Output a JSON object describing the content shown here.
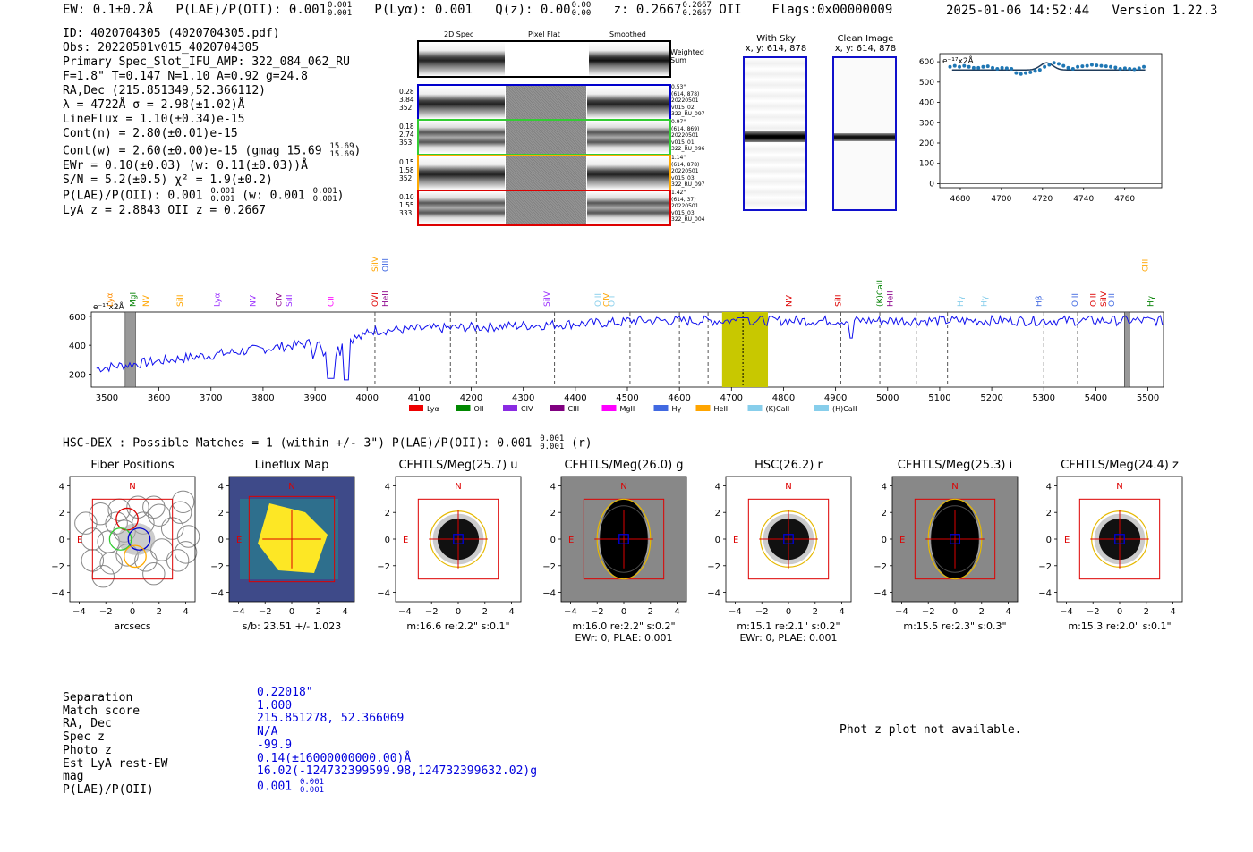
{
  "header": {
    "ew": "EW: 0.1±0.2Å",
    "plae_label": "P(LAE)/P(OII): 0.001",
    "plae_hi": "0.001",
    "plae_lo": "0.001",
    "plya": "P(Lyα): 0.001",
    "qz_label": "Q(z): 0.00",
    "qz_hi": "0.00",
    "qz_lo": "0.00",
    "z_label": "z: 0.2667",
    "z_hi": "0.2667",
    "z_lo": "0.2667",
    "z_line": "OII",
    "flags": "Flags:0x00000009",
    "timestamp": "2025-01-06 14:52:44",
    "version": "Version 1.22.3"
  },
  "info": {
    "lines": [
      "ID: 4020704305 (4020704305.pdf)",
      "Obs: 20220501v015_4020704305",
      "Primary Spec_Slot_IFU_AMP: 322_084_062_RU",
      "F=1.8\"  T=0.147  N=1.10  A=0.92  g=24.8",
      "RA,Dec (215.851349,52.366112)",
      "λ = 4722Å  σ = 2.98(±1.02)Å",
      "LineFlux = 1.10(±0.34)e-15",
      "Cont(n) = 2.80(±0.01)e-15"
    ],
    "contw": "Cont(w) = 2.60(±0.00)e-15 (gmag 15.69",
    "contw_hi": "15.69",
    "contw_lo": "15.69",
    "contw_end": ")",
    "ewr": "EWr = 0.10(±0.03) (w: 0.11(±0.03))Å",
    "sn": "S/N = 5.2(±0.5)  χ² = 1.9(±0.2)",
    "plae": "P(LAE)/P(OII): 0.001",
    "plae_hi": "0.001",
    "plae_lo": "0.001",
    "plae_w": "(w: 0.001",
    "plae_w_hi": "0.001",
    "plae_w_lo": "0.001",
    "plae_w_end": ")",
    "lyaz": "LyA z = 2.8843  OII z = 0.2667"
  },
  "stamps": {
    "col_headers": [
      "2D Spec",
      "Pixel Flat",
      "Smoothed"
    ],
    "weighted_label": "Weighted Sum",
    "rows": [
      {
        "color": "#0000cc",
        "left": [
          "0.28",
          "3.84",
          "352"
        ],
        "right": [
          "0.53\"",
          "(614, 878)",
          "20220501",
          "v015_02",
          "322_RU_097"
        ]
      },
      {
        "color": "#33cc33",
        "left": [
          "0.18",
          "2.74",
          "353"
        ],
        "right": [
          "0.97\"",
          "(614, 869)",
          "20220501",
          "v015_01",
          "322_RU_096"
        ]
      },
      {
        "color": "#ffaa00",
        "left": [
          "0.15",
          "1.58",
          "352"
        ],
        "right": [
          "1.14\"",
          "(614, 878)",
          "20220501",
          "v015_03",
          "322_RU_097"
        ]
      },
      {
        "color": "#dd0000",
        "left": [
          "0.10",
          "1.55",
          "333"
        ],
        "right": [
          "1.42\"",
          "(614, 37)",
          "20220501",
          "v015_03",
          "322_RU_004"
        ]
      }
    ]
  },
  "sky": {
    "with_sky_title": "With Sky",
    "with_sky_coords": "x, y: 614, 878",
    "clean_title": "Clean Image",
    "clean_coords": "x, y: 614, 878"
  },
  "zoom_plot": {
    "units": "e⁻¹⁷x2Å",
    "yticks": [
      "600",
      "500",
      "400",
      "300",
      "200",
      "100",
      "0"
    ],
    "xticks": [
      "4680",
      "4700",
      "4720",
      "4740",
      "4760"
    ]
  },
  "spectrum": {
    "units": "e⁻¹⁷x2Å",
    "yticks": [
      "600",
      "400",
      "200"
    ],
    "xticks": [
      "3500",
      "3600",
      "3700",
      "3800",
      "3900",
      "4000",
      "4100",
      "4200",
      "4300",
      "4400",
      "4500",
      "4600",
      "4700",
      "4800",
      "4900",
      "5000",
      "5100",
      "5200",
      "5300",
      "5400",
      "5500"
    ],
    "lines": [
      {
        "label": "Lyα",
        "x": 3505,
        "color": "#ff8c00",
        "row": 1
      },
      {
        "label": "MgII",
        "x": 3550,
        "color": "#008000",
        "row": 1
      },
      {
        "label": "NV",
        "x": 3575,
        "color": "#ffa500",
        "row": 1
      },
      {
        "label": "SiII",
        "x": 3640,
        "color": "#ffa500",
        "row": 1
      },
      {
        "label": "Lyα",
        "x": 3712,
        "color": "#9b30ff",
        "row": 1
      },
      {
        "label": "NV",
        "x": 3780,
        "color": "#9b30ff",
        "row": 1
      },
      {
        "label": "CIV",
        "x": 3830,
        "color": "#8b008b",
        "row": 1
      },
      {
        "label": "SiII",
        "x": 3850,
        "color": "#9b30ff",
        "row": 1
      },
      {
        "label": "CII",
        "x": 3930,
        "color": "#ff00ff",
        "row": 1
      },
      {
        "label": "SiIV",
        "x": 4015,
        "color": "#ffa500",
        "row": 0
      },
      {
        "label": "OIII",
        "x": 4035,
        "color": "#4169e1",
        "row": 0
      },
      {
        "label": "OVI",
        "x": 4015,
        "color": "#dd0000",
        "row": 1
      },
      {
        "label": "HeII",
        "x": 4035,
        "color": "#8b008b",
        "row": 1
      },
      {
        "label": "SiIV",
        "x": 4345,
        "color": "#9b30ff",
        "row": 1
      },
      {
        "label": "OIII",
        "x": 4443,
        "color": "#87ceeb",
        "row": 1
      },
      {
        "label": "CIV",
        "x": 4460,
        "color": "#ffa500",
        "row": 1
      },
      {
        "label": "OII",
        "x": 4470,
        "color": "#87ceeb",
        "row": 1
      },
      {
        "label": "NV",
        "x": 4810,
        "color": "#dd0000",
        "row": 1
      },
      {
        "label": "SiII",
        "x": 4905,
        "color": "#dd0000",
        "row": 1
      },
      {
        "label": "(K)CaII",
        "x": 4985,
        "color": "#008000",
        "row": 1
      },
      {
        "label": "HeII",
        "x": 5005,
        "color": "#8b008b",
        "row": 1
      },
      {
        "label": "Hγ",
        "x": 5140,
        "color": "#87ceeb",
        "row": 1
      },
      {
        "label": "Hγ",
        "x": 5185,
        "color": "#87ceeb",
        "row": 1
      },
      {
        "label": "Hβ",
        "x": 5290,
        "color": "#4169e1",
        "row": 1
      },
      {
        "label": "OIII",
        "x": 5360,
        "color": "#4169e1",
        "row": 1
      },
      {
        "label": "OIII",
        "x": 5395,
        "color": "#dd0000",
        "row": 1
      },
      {
        "label": "SiIV",
        "x": 5415,
        "color": "#dd0000",
        "row": 1
      },
      {
        "label": "OIII",
        "x": 5430,
        "color": "#4169e1",
        "row": 1
      },
      {
        "label": "CIII",
        "x": 5495,
        "color": "#ffa500",
        "row": 0
      },
      {
        "label": "Hγ",
        "x": 5505,
        "color": "#008000",
        "row": 1
      }
    ],
    "legend": [
      {
        "label": "Lyα",
        "color": "#ee0000"
      },
      {
        "label": "OII",
        "color": "#008800"
      },
      {
        "label": "CIV",
        "color": "#8a2be2"
      },
      {
        "label": "CIII",
        "color": "#800080"
      },
      {
        "label": "MgII",
        "color": "#ff00ff"
      },
      {
        "label": "Hγ",
        "color": "#4169e1"
      },
      {
        "label": "HeII",
        "color": "#ffa500"
      },
      {
        "label": "(K)CaII",
        "color": "#87ceeb"
      },
      {
        "label": "(H)CaII",
        "color": "#87ceeb"
      }
    ]
  },
  "hsc": {
    "title": "HSC-DEX : Possible Matches = 1 (within +/- 3\")  P(LAE)/P(OII): 0.001",
    "title_hi": "0.001",
    "title_lo": "0.001",
    "title_end": "(r)"
  },
  "cutouts": [
    {
      "title": "Fiber Positions",
      "sub": "arcsecs",
      "sub2": "",
      "bg": "#ffffff",
      "kind": "fiber"
    },
    {
      "title": "Lineflux Map",
      "sub": "s/b: 23.51 +/- 1.023",
      "sub2": "",
      "bg": "#3b528b",
      "kind": "flux"
    },
    {
      "title": "CFHTLS/Meg(25.7) u",
      "sub": "m:16.6  re:2.2\"  s:0.1\"",
      "sub2": "",
      "bg": "#ffffff",
      "kind": "star"
    },
    {
      "title": "CFHTLS/Meg(26.0) g",
      "sub": "m:16.0  re:2.2\"  s:0.2\"",
      "sub2": "EWr: 0, PLAE: 0.001",
      "bg": "#888888",
      "kind": "star_tall"
    },
    {
      "title": "HSC(26.2) r",
      "sub": "m:15.1  re:2.1\"  s:0.2\"",
      "sub2": "EWr: 0, PLAE: 0.001",
      "bg": "#ffffff",
      "kind": "star"
    },
    {
      "title": "CFHTLS/Meg(25.3) i",
      "sub": "m:15.5  re:2.3\"  s:0.3\"",
      "sub2": "",
      "bg": "#888888",
      "kind": "star_tall"
    },
    {
      "title": "CFHTLS/Meg(24.4) z",
      "sub": "m:15.3  re:2.0\"  s:0.1\"",
      "sub2": "",
      "bg": "#ffffff",
      "kind": "star"
    }
  ],
  "cut_ticks": [
    "4",
    "2",
    "0",
    "−2",
    "−4"
  ],
  "cut_xticks": [
    "−4",
    "−2",
    "0",
    "2",
    "4"
  ],
  "north": "N",
  "east": "E",
  "match": {
    "labels": [
      "Separation",
      "Match score",
      "RA, Dec",
      "Spec z",
      "Photo z",
      "Est LyA rest-EW",
      "mag",
      "P(LAE)/P(OII)"
    ],
    "values": [
      "0.22018\"",
      "1.000",
      "215.851278, 52.366069",
      "N/A",
      "-99.9",
      "0.14(±16000000000.00)Å",
      "16.02(-124732399599.98,124732399632.02)g",
      "0.001"
    ],
    "plae_hi": "0.001",
    "plae_lo": "0.001"
  },
  "photz": "Phot z plot not available."
}
